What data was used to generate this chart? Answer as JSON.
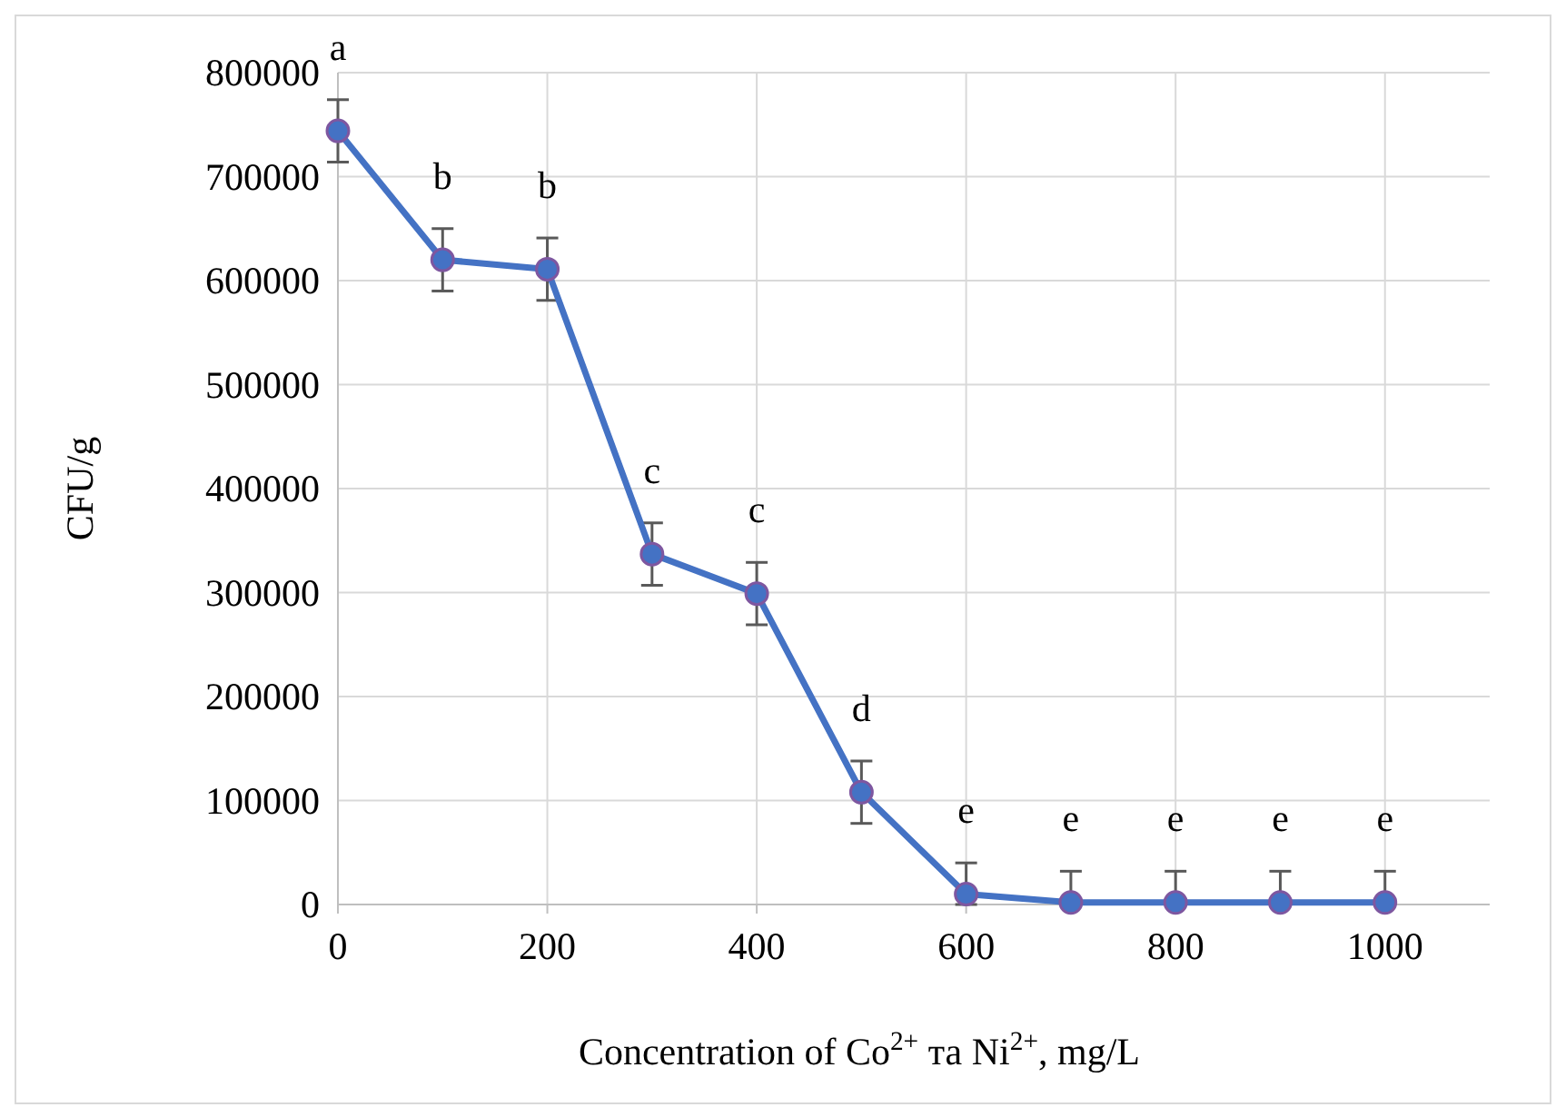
{
  "chart_data": {
    "type": "line",
    "xlabel": "Concentration of Co$^{2+}$ та Ni$^{2+}$, mg/L",
    "ylabel": "CFU/g",
    "x": [
      0,
      100,
      200,
      300,
      400,
      500,
      600,
      700,
      800,
      900,
      1000
    ],
    "series": [
      {
        "color": "#4472c4",
        "values": [
          744000,
          620000,
          611000,
          337000,
          299000,
          108000,
          10000,
          2000,
          2000,
          2000,
          2000
        ],
        "errors": [
          [
            714000,
            774000
          ],
          [
            590000,
            650000
          ],
          [
            581000,
            641000
          ],
          [
            307000,
            367000
          ],
          [
            269000,
            329000
          ],
          [
            78000,
            138000
          ],
          [
            0,
            40000
          ],
          [
            0,
            32000
          ],
          [
            0,
            32000
          ],
          [
            0,
            32000
          ],
          [
            0,
            32000
          ]
        ]
      }
    ],
    "xlim": [
      0,
      1100
    ],
    "xticks": [
      0,
      200,
      400,
      600,
      800,
      1000
    ],
    "ylim": [
      0,
      800000
    ],
    "yticks": [
      0,
      100000,
      200000,
      300000,
      400000,
      500000,
      600000,
      700000,
      800000
    ],
    "grid": true,
    "marker": "circle",
    "line_style": "solid",
    "annotations": [
      {
        "text": "a",
        "x": 0,
        "y": 744000
      },
      {
        "text": "b",
        "x": 100,
        "y": 620000
      },
      {
        "text": "b",
        "x": 200,
        "y": 611000
      },
      {
        "text": "c",
        "x": 300,
        "y": 337000
      },
      {
        "text": "c",
        "x": 400,
        "y": 299000
      },
      {
        "text": "d",
        "x": 500,
        "y": 108000
      },
      {
        "text": "e",
        "x": 600,
        "y": 10000
      },
      {
        "text": "e",
        "x": 700,
        "y": 2000
      },
      {
        "text": "e",
        "x": 800,
        "y": 2000
      },
      {
        "text": "e",
        "x": 900,
        "y": 2000
      },
      {
        "text": "e",
        "x": 1000,
        "y": 2000
      }
    ]
  }
}
